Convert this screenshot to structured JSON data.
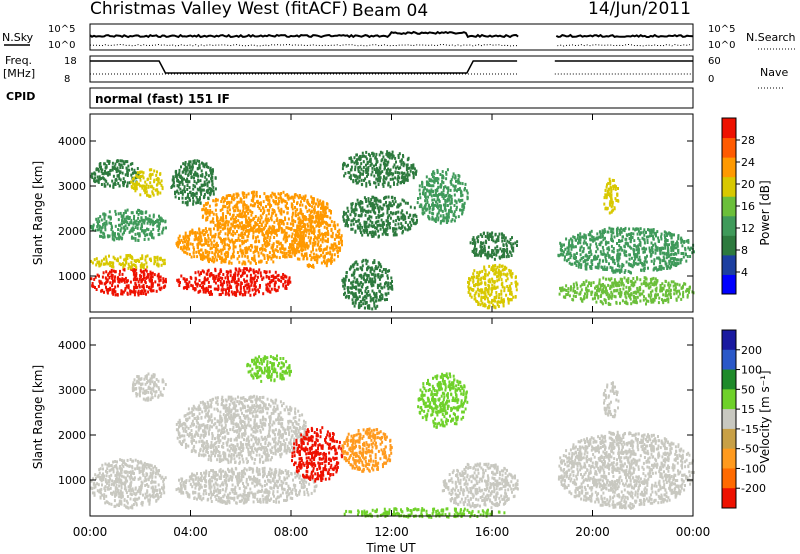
{
  "header": {
    "title": "Christmas Valley West (fitACF)",
    "beam": "Beam 04",
    "date": "14/Jun/2011"
  },
  "noise_panel": {
    "left_label": "N.Sky",
    "left_ticks": [
      "10^5",
      "10^0"
    ],
    "right_label": "N.Search",
    "right_ticks": [
      "10^5",
      "10^0"
    ]
  },
  "freq_panel": {
    "left_label_line1": "Freq.",
    "left_label_line2": "[MHz]",
    "left_ticks": [
      "18",
      "8"
    ],
    "right_label": "Nave",
    "right_ticks": [
      "60",
      "0"
    ]
  },
  "cpid": {
    "label": "CPID",
    "value": "normal (fast) 151 IF"
  },
  "x_axis": {
    "title": "Time UT",
    "ticks": [
      "00:00",
      "04:00",
      "08:00",
      "12:00",
      "16:00",
      "20:00",
      "00:00"
    ]
  },
  "colors": {
    "power_scale": [
      "#0000ff",
      "#1c3fa0",
      "#2d7a3e",
      "#3f9a5a",
      "#6bbf3a",
      "#d8c800",
      "#ff9900",
      "#ff5a00",
      "#ee1100"
    ],
    "velocity_scale": [
      "#1a1aa0",
      "#2a58c8",
      "#1e8a2a",
      "#6fd12a",
      "#c8c8c0",
      "#c8a046",
      "#ff9a1e",
      "#ff6a00",
      "#ee1100"
    ]
  },
  "chart_data": [
    {
      "type": "heatmap",
      "name": "power",
      "ylabel": "Slant Range [km]",
      "xlabel": "",
      "y_ticks": [
        "1000",
        "2000",
        "3000",
        "4000"
      ],
      "ylim": [
        200,
        4600
      ],
      "xlim_hours": [
        0,
        24
      ],
      "colorbar": {
        "label": "Power [dB]",
        "ticks": [
          "4",
          "8",
          "12",
          "16",
          "20",
          "24",
          "28"
        ],
        "range": [
          0,
          32
        ]
      },
      "regions": [
        {
          "t0": 0.0,
          "t1": 3.0,
          "r0": 600,
          "r1": 1200,
          "level": 29
        },
        {
          "t0": 0.0,
          "t1": 3.0,
          "r0": 1200,
          "r1": 1500,
          "level": 18
        },
        {
          "t0": 0.0,
          "t1": 3.0,
          "r0": 1800,
          "r1": 2500,
          "level": 12
        },
        {
          "t0": 0.0,
          "t1": 2.0,
          "r0": 3000,
          "r1": 3600,
          "level": 8
        },
        {
          "t0": 1.6,
          "t1": 3.0,
          "r0": 2800,
          "r1": 3400,
          "level": 18
        },
        {
          "t0": 3.4,
          "t1": 8.0,
          "r0": 600,
          "r1": 1200,
          "level": 29
        },
        {
          "t0": 3.4,
          "t1": 8.6,
          "r0": 1300,
          "r1": 2200,
          "level": 24
        },
        {
          "t0": 4.4,
          "t1": 9.6,
          "r0": 2000,
          "r1": 2900,
          "level": 24
        },
        {
          "t0": 3.2,
          "t1": 5.0,
          "r0": 2600,
          "r1": 3600,
          "level": 10
        },
        {
          "t0": 8.0,
          "t1": 10.0,
          "r0": 1200,
          "r1": 2400,
          "level": 22
        },
        {
          "t0": 10.0,
          "t1": 12.0,
          "r0": 300,
          "r1": 1400,
          "level": 8
        },
        {
          "t0": 10.0,
          "t1": 13.0,
          "r0": 1900,
          "r1": 2800,
          "level": 10
        },
        {
          "t0": 10.0,
          "t1": 13.0,
          "r0": 3000,
          "r1": 3800,
          "level": 8
        },
        {
          "t0": 13.0,
          "t1": 15.0,
          "r0": 2200,
          "r1": 3400,
          "level": 12
        },
        {
          "t0": 15.0,
          "t1": 17.0,
          "r0": 300,
          "r1": 1300,
          "level": 20
        },
        {
          "t0": 15.0,
          "t1": 17.0,
          "r0": 1400,
          "r1": 2000,
          "level": 8
        },
        {
          "t0": 18.6,
          "t1": 24.0,
          "r0": 400,
          "r1": 1000,
          "level": 16
        },
        {
          "t0": 18.6,
          "t1": 24.0,
          "r0": 1100,
          "r1": 2100,
          "level": 14
        },
        {
          "t0": 20.4,
          "t1": 21.0,
          "r0": 2400,
          "r1": 3200,
          "level": 20
        }
      ]
    },
    {
      "type": "heatmap",
      "name": "velocity",
      "ylabel": "Slant Range [km]",
      "xlabel": "Time UT",
      "y_ticks": [
        "1000",
        "2000",
        "3000",
        "4000"
      ],
      "ylim": [
        200,
        4600
      ],
      "xlim_hours": [
        0,
        24
      ],
      "colorbar": {
        "label": "Velocity [m s⁻¹]",
        "ticks": [
          "200",
          "100",
          "50",
          "15",
          "-15",
          "-50",
          "-100",
          "-200"
        ],
        "range": [
          -250,
          250
        ]
      },
      "regions": [
        {
          "t0": 0.0,
          "t1": 3.0,
          "r0": 400,
          "r1": 1500,
          "level": 0
        },
        {
          "t0": 1.6,
          "t1": 3.0,
          "r0": 2800,
          "r1": 3400,
          "level": -20
        },
        {
          "t0": 3.4,
          "t1": 9.0,
          "r0": 500,
          "r1": 1300,
          "level": 0
        },
        {
          "t0": 3.4,
          "t1": 8.6,
          "r0": 1400,
          "r1": 2900,
          "level": 0
        },
        {
          "t0": 6.2,
          "t1": 8.0,
          "r0": 3200,
          "r1": 3800,
          "level": 40
        },
        {
          "t0": 8.0,
          "t1": 10.0,
          "r0": 1000,
          "r1": 2200,
          "level": -210
        },
        {
          "t0": 10.0,
          "t1": 12.0,
          "r0": 1200,
          "r1": 2200,
          "level": -90
        },
        {
          "t0": 10.0,
          "t1": 16.6,
          "r0": 200,
          "r1": 400,
          "level": 60
        },
        {
          "t0": 13.0,
          "t1": 15.0,
          "r0": 2200,
          "r1": 3400,
          "level": 40
        },
        {
          "t0": 14.0,
          "t1": 17.0,
          "r0": 400,
          "r1": 1400,
          "level": 0
        },
        {
          "t0": 18.6,
          "t1": 24.0,
          "r0": 400,
          "r1": 2100,
          "level": 0
        },
        {
          "t0": 20.4,
          "t1": 21.0,
          "r0": 2400,
          "r1": 3200,
          "level": -20
        }
      ]
    }
  ]
}
